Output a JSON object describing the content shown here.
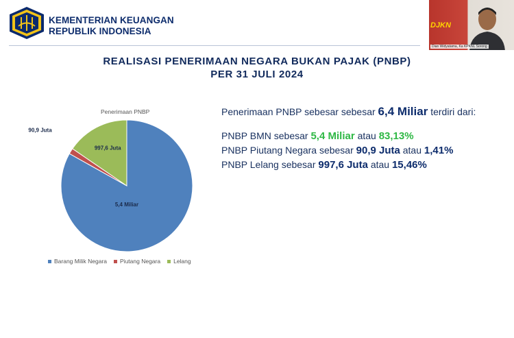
{
  "header": {
    "org_line1": "KEMENTERIAN KEUANGAN",
    "org_line2": "REPUBLIK INDONESIA",
    "title_line1": "REALISASI PENERIMAAN NEGARA BUKAN PAJAK (PNBP)",
    "title_line2": "PER 31 JULI 2024"
  },
  "video": {
    "badge_text": "DJKN",
    "caption": "Dian Widyatama, Ka KPKNL Sorong"
  },
  "chart_data": {
    "type": "pie",
    "title": "Penerimaan PNBP",
    "categories": [
      "Barang Milik Negara",
      "Piutang Negara",
      "Lelang"
    ],
    "values": [
      83.13,
      1.41,
      15.46
    ],
    "data_labels": [
      "5,4 Miliar",
      "90,9 Juta",
      "997,6 Juta"
    ],
    "colors": [
      "#4f81bd",
      "#c0504d",
      "#9bbb59"
    ],
    "legend": "bottom"
  },
  "summary": {
    "line1_prefix": "Penerimaan PNBP sebesar sebesar",
    "line1_value": "6,4 Miliar",
    "line1_suffix": "terdiri dari:",
    "items": [
      {
        "prefix": "PNBP BMN sebesar",
        "value": "5,4 Miliar",
        "mid": "atau",
        "percent": "83,13%"
      },
      {
        "prefix": "PNBP Piutang Negara sebesar",
        "value": "90,9 Juta",
        "mid": "atau",
        "percent": "1,41%"
      },
      {
        "prefix": "PNBP Lelang sebesar",
        "value": "997,6 Juta",
        "mid": "atau",
        "percent": "15,46%"
      }
    ]
  }
}
